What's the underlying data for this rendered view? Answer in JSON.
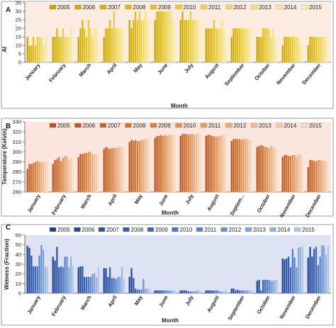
{
  "chart_data": [
    {
      "type": "bar",
      "panel_label": "A",
      "categories": [
        "January",
        "February",
        "March",
        "April",
        "May",
        "June",
        "July",
        "August",
        "September",
        "October",
        "November",
        "December"
      ],
      "legend": [
        "2005",
        "2006",
        "2007",
        "2008",
        "2009",
        "2010",
        "2011",
        "2012",
        "2013",
        "2014",
        "2015"
      ],
      "xlabel": "Month",
      "ylabel": "AI",
      "ylim": [
        0,
        35
      ],
      "yticks": [
        0,
        5,
        10,
        15,
        20,
        25,
        30,
        35
      ],
      "background": "#fcebe0",
      "colors": [
        "#c8a200",
        "#cfab05",
        "#d6b40c",
        "#dcbc18",
        "#e2c426",
        "#e7cb38",
        "#ecd24c",
        "#f0d964",
        "#f3e07e",
        "#f6e79a",
        "#f9efba"
      ],
      "values": [
        [
          15,
          10,
          10,
          15,
          10,
          15,
          15,
          15,
          10,
          15,
          15
        ],
        [
          15,
          15,
          20,
          15,
          15,
          20,
          15,
          15,
          15,
          20,
          15
        ],
        [
          15,
          20,
          25,
          20,
          15,
          25,
          20,
          15,
          20,
          20,
          15
        ],
        [
          15,
          20,
          20,
          25,
          20,
          30,
          20,
          20,
          20,
          20,
          20
        ],
        [
          25,
          20,
          25,
          30,
          25,
          30,
          25,
          25,
          30,
          25,
          25
        ],
        [
          25,
          30,
          30,
          30,
          30,
          30,
          30,
          30,
          30,
          25,
          25
        ],
        [
          25,
          30,
          25,
          25,
          25,
          30,
          25,
          25,
          25,
          25,
          25
        ],
        [
          20,
          20,
          20,
          20,
          25,
          20,
          20,
          20,
          25,
          20,
          20
        ],
        [
          15,
          20,
          20,
          20,
          20,
          20,
          20,
          20,
          20,
          20,
          25
        ],
        [
          15,
          15,
          15,
          20,
          20,
          20,
          20,
          15,
          20,
          15,
          15
        ],
        [
          10,
          15,
          15,
          15,
          15,
          15,
          15,
          15,
          15,
          10,
          15
        ],
        [
          10,
          15,
          15,
          15,
          15,
          15,
          15,
          15,
          15,
          15,
          15
        ]
      ]
    },
    {
      "type": "bar",
      "panel_label": "B",
      "categories": [
        "January",
        "February",
        "March",
        "April",
        "May",
        "June",
        "July",
        "August",
        "Septem...",
        "October",
        "November",
        "December"
      ],
      "legend": [
        "2005",
        "2006",
        "2007",
        "2008",
        "2009",
        "2010",
        "2011",
        "2012",
        "2013",
        "2014",
        "2015"
      ],
      "xlabel": "Month",
      "ylabel": "Temperature (Kelvin)",
      "ylim": [
        260,
        330
      ],
      "yticks": [
        260,
        270,
        280,
        290,
        300,
        310,
        320,
        330
      ],
      "background": "#fae6df",
      "colors": [
        "#b4521a",
        "#bd5c20",
        "#c66727",
        "#cf7331",
        "#d7803f",
        "#de8e50",
        "#e49c63",
        "#eaab78",
        "#efbb90",
        "#f4cba9",
        "#f8dcc4"
      ],
      "values": [
        [
          283,
          288,
          288,
          289,
          290,
          291,
          290,
          290,
          290,
          290,
          290
        ],
        [
          288,
          292,
          293,
          295,
          291,
          294,
          296,
          296,
          292,
          295,
          290
        ],
        [
          295,
          298,
          298,
          299,
          299,
          300,
          300,
          298,
          298,
          298,
          298
        ],
        [
          303,
          305,
          304,
          303,
          304,
          304,
          304,
          305,
          305,
          305,
          305
        ],
        [
          310,
          312,
          311,
          312,
          311,
          311,
          312,
          312,
          313,
          313,
          313
        ],
        [
          314,
          316,
          316,
          317,
          316,
          317,
          316,
          317,
          317,
          317,
          317
        ],
        [
          316,
          318,
          318,
          318,
          317,
          318,
          318,
          317,
          318,
          319,
          318
        ],
        [
          316,
          317,
          317,
          316,
          316,
          315,
          316,
          316,
          317,
          318,
          317
        ],
        [
          311,
          313,
          313,
          313,
          313,
          312,
          313,
          313,
          313,
          312,
          312
        ],
        [
          305,
          306,
          307,
          306,
          305,
          305,
          304,
          306,
          305,
          304,
          303
        ],
        [
          295,
          297,
          297,
          296,
          296,
          297,
          297,
          295,
          298,
          297,
          297
        ],
        [
          285,
          292,
          292,
          291,
          291,
          292,
          292,
          291,
          292,
          291,
          290
        ]
      ]
    },
    {
      "type": "bar",
      "panel_label": "C",
      "categories": [
        "January",
        "February",
        "March",
        "April",
        "May",
        "June",
        "July",
        "August",
        "September",
        "October",
        "November",
        "December"
      ],
      "legend": [
        "2005",
        "2006",
        "2007",
        "2008",
        "2009",
        "2010",
        "2011",
        "2012",
        "2013",
        "2014",
        "2015"
      ],
      "xlabel": "Month",
      "ylabel": "Wetness (Fraction)",
      "ylim": [
        0,
        60
      ],
      "yticks": [
        0,
        10,
        20,
        30,
        40,
        50,
        60
      ],
      "background": "#dde3f3",
      "colors": [
        "#1f3f8a",
        "#244898",
        "#2b52a5",
        "#345db0",
        "#3f68b9",
        "#4b74c1",
        "#5982c8",
        "#6a91cf",
        "#7ea1d6",
        "#95b3de",
        "#aec5e6"
      ],
      "values": [
        [
          49,
          47,
          39,
          28,
          28,
          28,
          39,
          50,
          45,
          28,
          27
        ],
        [
          38,
          34,
          48,
          27,
          28,
          27,
          38,
          38,
          27,
          38,
          28
        ],
        [
          27,
          28,
          28,
          17,
          17,
          17,
          17,
          20,
          21,
          17,
          27
        ],
        [
          26,
          26,
          17,
          27,
          16,
          16,
          15,
          17,
          17,
          27,
          15
        ],
        [
          17,
          26,
          16,
          5,
          4,
          4,
          4,
          15,
          5,
          5,
          5
        ],
        [
          3,
          3,
          3,
          3,
          3,
          3,
          3,
          3,
          3,
          3,
          3
        ],
        [
          3,
          3,
          3,
          3,
          2,
          2,
          2,
          2,
          3,
          3,
          2
        ],
        [
          3,
          3,
          3,
          3,
          3,
          3,
          3,
          2,
          2,
          2,
          4
        ],
        [
          5,
          5,
          3,
          4,
          3,
          3,
          3,
          3,
          3,
          3,
          3
        ],
        [
          13,
          14,
          3,
          14,
          14,
          14,
          14,
          13,
          13,
          14,
          14
        ],
        [
          36,
          35,
          36,
          38,
          27,
          46,
          37,
          27,
          47,
          48,
          48
        ],
        [
          37,
          48,
          38,
          46,
          48,
          29,
          38,
          50,
          49,
          40,
          49
        ]
      ]
    }
  ],
  "panel_labels": [
    "A",
    "B",
    "C"
  ]
}
